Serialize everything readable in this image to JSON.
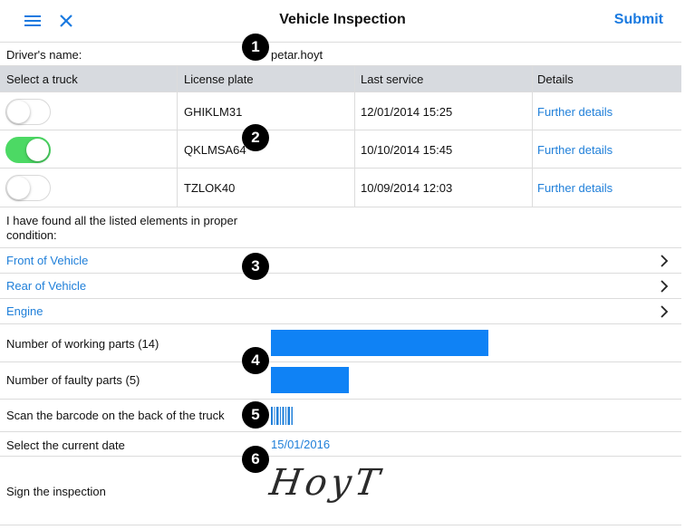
{
  "header": {
    "title": "Vehicle Inspection",
    "submit_label": "Submit",
    "menu_icon": "hamburger-menu-icon",
    "close_icon": "close-icon"
  },
  "driver": {
    "label": "Driver's name:",
    "value": "petar.hoyt"
  },
  "trucks": {
    "columns": [
      "Select a truck",
      "License plate",
      "Last service",
      "Details"
    ],
    "rows": [
      {
        "selected": false,
        "plate": "GHIKLM31",
        "last_service": "12/01/2014 15:25",
        "details": "Further details"
      },
      {
        "selected": true,
        "plate": "QKLMSA64",
        "last_service": "10/10/2014 15:45",
        "details": "Further details"
      },
      {
        "selected": false,
        "plate": "TZLOK40",
        "last_service": "10/09/2014 12:03",
        "details": "Further details"
      }
    ]
  },
  "condition_text": "I have found all the listed elements in proper condition:",
  "sections": [
    {
      "label": "Front of Vehicle"
    },
    {
      "label": "Rear of Vehicle"
    },
    {
      "label": "Engine"
    }
  ],
  "parts": {
    "working": {
      "label": "Number of working parts (14)",
      "value": 14
    },
    "faulty": {
      "label": "Number of faulty parts (5)",
      "value": 5
    },
    "bar_color": "#0f82f5"
  },
  "scan": {
    "label": "Scan the barcode on the back of the truck",
    "icon": "barcode-icon"
  },
  "date": {
    "label": "Select the current date",
    "value": "15/01/2016"
  },
  "signature": {
    "label": "Sign the inspection",
    "signed_text": "HoyT"
  },
  "badges": [
    "1",
    "2",
    "3",
    "4",
    "5",
    "6"
  ],
  "colors": {
    "link": "#1f7fd9",
    "toggle_on": "#4cd964",
    "header_row": "#d7dadf"
  }
}
